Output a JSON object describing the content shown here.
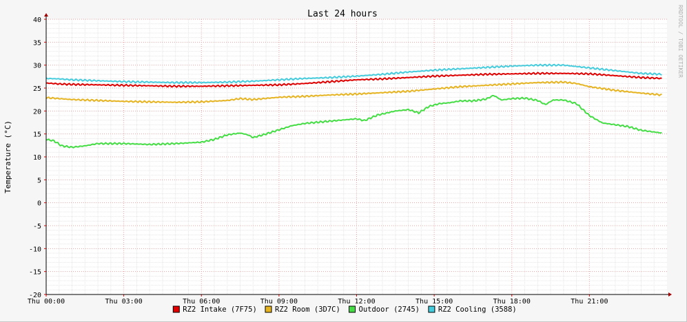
{
  "chart_data": {
    "type": "line",
    "title": "Last 24 hours",
    "ylabel": "Temperature (°C)",
    "xlabel": "",
    "watermark": "RRDTOOL / TOBI OETIKER",
    "ylim": [
      -20,
      40
    ],
    "y_ticks": [
      -20,
      -15,
      -10,
      -5,
      0,
      5,
      10,
      15,
      20,
      25,
      30,
      35,
      40
    ],
    "x_range_hours": [
      0,
      24
    ],
    "x_ticks": [
      {
        "hour": 0,
        "label": "Thu 00:00"
      },
      {
        "hour": 3,
        "label": "Thu 03:00"
      },
      {
        "hour": 6,
        "label": "Thu 06:00"
      },
      {
        "hour": 9,
        "label": "Thu 09:00"
      },
      {
        "hour": 12,
        "label": "Thu 12:00"
      },
      {
        "hour": 15,
        "label": "Thu 15:00"
      },
      {
        "hour": 18,
        "label": "Thu 18:00"
      },
      {
        "hour": 21,
        "label": "Thu 21:00"
      }
    ],
    "grid": true,
    "legend_position": "bottom",
    "series": [
      {
        "name": "RZ2 Intake (7F75)",
        "color": "#e00000",
        "points": [
          [
            0,
            26.1
          ],
          [
            0.5,
            25.9
          ],
          [
            1,
            25.8
          ],
          [
            2,
            25.7
          ],
          [
            3,
            25.6
          ],
          [
            4,
            25.5
          ],
          [
            5,
            25.4
          ],
          [
            6,
            25.4
          ],
          [
            7,
            25.5
          ],
          [
            8,
            25.6
          ],
          [
            9,
            25.7
          ],
          [
            10,
            26.0
          ],
          [
            11,
            26.4
          ],
          [
            12,
            26.8
          ],
          [
            13,
            27.0
          ],
          [
            14,
            27.3
          ],
          [
            15,
            27.6
          ],
          [
            16,
            27.8
          ],
          [
            17,
            28.0
          ],
          [
            18,
            28.1
          ],
          [
            19,
            28.2
          ],
          [
            20,
            28.2
          ],
          [
            21,
            28.1
          ],
          [
            22,
            27.7
          ],
          [
            23,
            27.3
          ],
          [
            23.8,
            27.1
          ]
        ]
      },
      {
        "name": "RZ2 Room (3D7C)",
        "color": "#e6b420",
        "points": [
          [
            0,
            22.9
          ],
          [
            0.5,
            22.7
          ],
          [
            1,
            22.5
          ],
          [
            2,
            22.3
          ],
          [
            3,
            22.1
          ],
          [
            4,
            22.0
          ],
          [
            5,
            21.9
          ],
          [
            6,
            22.0
          ],
          [
            7,
            22.3
          ],
          [
            7.5,
            22.7
          ],
          [
            8,
            22.5
          ],
          [
            9,
            23.0
          ],
          [
            10,
            23.2
          ],
          [
            11,
            23.5
          ],
          [
            12,
            23.7
          ],
          [
            13,
            24.0
          ],
          [
            14,
            24.3
          ],
          [
            15,
            24.8
          ],
          [
            16,
            25.3
          ],
          [
            17,
            25.6
          ],
          [
            18,
            25.9
          ],
          [
            19,
            26.2
          ],
          [
            20,
            26.3
          ],
          [
            20.5,
            26.0
          ],
          [
            21,
            25.3
          ],
          [
            22,
            24.5
          ],
          [
            23,
            23.9
          ],
          [
            23.8,
            23.5
          ]
        ]
      },
      {
        "name": "Outdoor (2745)",
        "color": "#44dd44",
        "points": [
          [
            0,
            13.8
          ],
          [
            0.3,
            13.5
          ],
          [
            0.6,
            12.4
          ],
          [
            1,
            12.1
          ],
          [
            1.5,
            12.4
          ],
          [
            2,
            12.9
          ],
          [
            3,
            12.9
          ],
          [
            4,
            12.7
          ],
          [
            5,
            12.9
          ],
          [
            6,
            13.2
          ],
          [
            6.5,
            13.8
          ],
          [
            7,
            14.8
          ],
          [
            7.5,
            15.2
          ],
          [
            7.8,
            14.8
          ],
          [
            8,
            14.2
          ],
          [
            8.5,
            15.0
          ],
          [
            9,
            15.9
          ],
          [
            9.5,
            16.8
          ],
          [
            10,
            17.3
          ],
          [
            11,
            17.8
          ],
          [
            12,
            18.3
          ],
          [
            12.3,
            17.9
          ],
          [
            12.8,
            19.1
          ],
          [
            13.5,
            20.0
          ],
          [
            14,
            20.3
          ],
          [
            14.4,
            19.6
          ],
          [
            14.8,
            21.0
          ],
          [
            15.2,
            21.6
          ],
          [
            15.6,
            21.8
          ],
          [
            16,
            22.2
          ],
          [
            16.5,
            22.2
          ],
          [
            17,
            22.6
          ],
          [
            17.3,
            23.4
          ],
          [
            17.6,
            22.4
          ],
          [
            18,
            22.7
          ],
          [
            18.5,
            22.8
          ],
          [
            19,
            22.3
          ],
          [
            19.3,
            21.4
          ],
          [
            19.6,
            22.4
          ],
          [
            20,
            22.4
          ],
          [
            20.5,
            21.6
          ],
          [
            21,
            19.0
          ],
          [
            21.5,
            17.4
          ],
          [
            22,
            17.0
          ],
          [
            22.5,
            16.6
          ],
          [
            23,
            15.8
          ],
          [
            23.8,
            15.2
          ]
        ]
      },
      {
        "name": "RZ2 Cooling (3588)",
        "color": "#44ccdd",
        "points": [
          [
            0,
            27.1
          ],
          [
            0.5,
            27.0
          ],
          [
            1,
            26.8
          ],
          [
            2,
            26.6
          ],
          [
            3,
            26.4
          ],
          [
            4,
            26.3
          ],
          [
            5,
            26.2
          ],
          [
            6,
            26.2
          ],
          [
            7,
            26.3
          ],
          [
            8,
            26.5
          ],
          [
            9,
            26.8
          ],
          [
            10,
            27.1
          ],
          [
            11,
            27.3
          ],
          [
            12,
            27.6
          ],
          [
            13,
            28.0
          ],
          [
            14,
            28.5
          ],
          [
            15,
            28.9
          ],
          [
            16,
            29.2
          ],
          [
            17,
            29.5
          ],
          [
            18,
            29.8
          ],
          [
            19,
            30.0
          ],
          [
            20,
            30.0
          ],
          [
            21,
            29.4
          ],
          [
            22,
            28.8
          ],
          [
            23,
            28.2
          ],
          [
            23.8,
            28.0
          ]
        ]
      }
    ]
  }
}
